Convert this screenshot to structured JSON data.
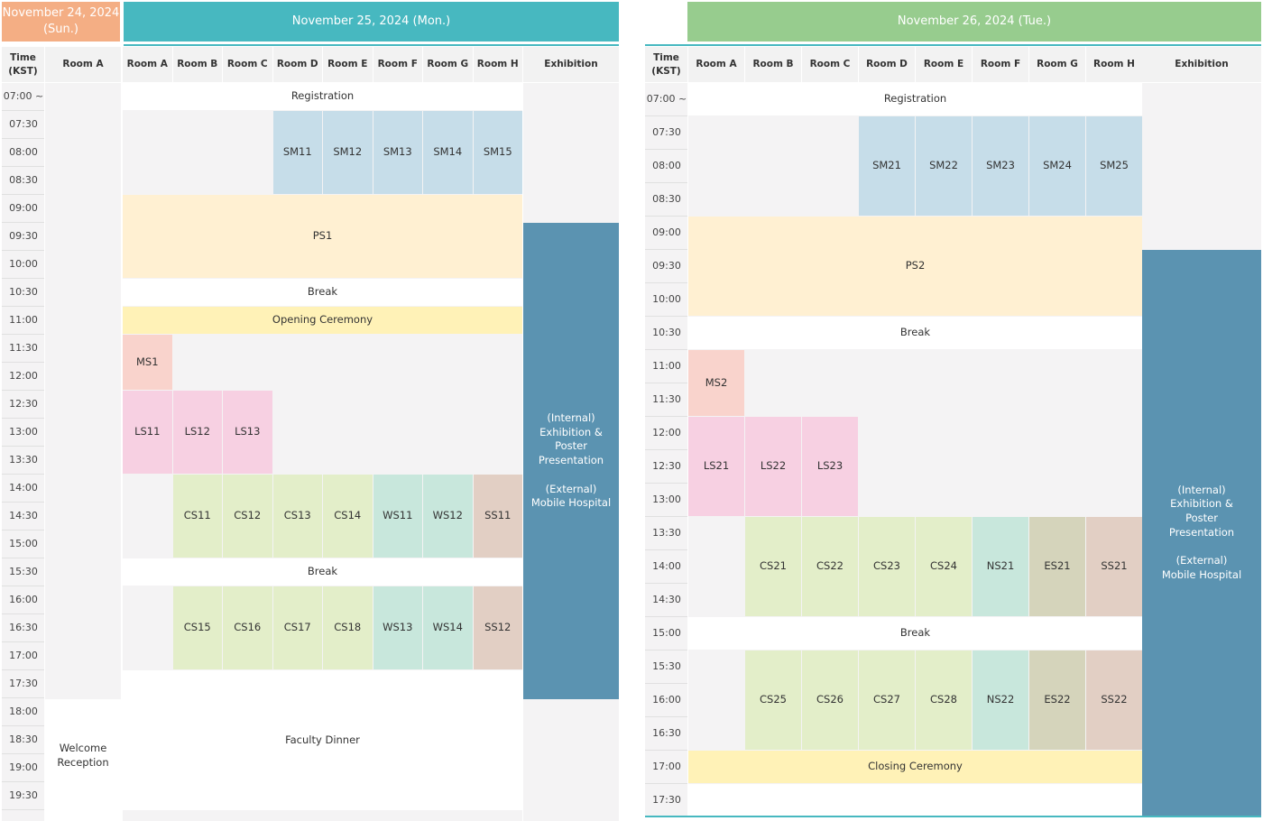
{
  "day1": {
    "sun_label": "November 24, 2024 (Sun.)",
    "mon_label": "November 25, 2024 (Mon.)",
    "time_header": "Time (KST)",
    "sun_room": "Room A",
    "rooms": [
      "Room A",
      "Room B",
      "Room C",
      "Room D",
      "Room E",
      "Room F",
      "Room G",
      "Room H"
    ],
    "exhibition": "Exhibition",
    "times": [
      "07:00 ~",
      "07:30",
      "08:00",
      "08:30",
      "09:00",
      "09:30",
      "10:00",
      "10:30",
      "11:00",
      "11:30",
      "12:00",
      "12:30",
      "13:00",
      "13:30",
      "14:00",
      "14:30",
      "15:00",
      "15:30",
      "16:00",
      "16:30",
      "17:00",
      "17:30",
      "18:00",
      "18:30",
      "19:00",
      "19:30"
    ],
    "registration": "Registration",
    "sm": [
      "SM11",
      "SM12",
      "SM13",
      "SM14",
      "SM15"
    ],
    "ps": "PS1",
    "break1": "Break",
    "opening": "Opening Ceremony",
    "ms": "MS1",
    "ls": [
      "LS11",
      "LS12",
      "LS13"
    ],
    "cs_a": [
      "CS11",
      "CS12",
      "CS13",
      "CS14"
    ],
    "ws_a": [
      "WS11",
      "WS12"
    ],
    "ss_a": "SS11",
    "break2": "Break",
    "cs_b": [
      "CS15",
      "CS16",
      "CS17",
      "CS18"
    ],
    "ws_b": [
      "WS13",
      "WS14"
    ],
    "ss_b": "SS12",
    "faculty_dinner": "Faculty Dinner",
    "welcome": "Welcome Reception",
    "exh_internal": "(Internal) Exhibition & Poster Presentation",
    "exh_external": "(External) Mobile Hospital"
  },
  "day2": {
    "tue_label": "November 26, 2024 (Tue.)",
    "time_header": "Time (KST)",
    "rooms": [
      "Room A",
      "Room B",
      "Room C",
      "Room D",
      "Room E",
      "Room F",
      "Room G",
      "Room H"
    ],
    "exhibition": "Exhibition",
    "times": [
      "07:00 ~",
      "07:30",
      "08:00",
      "08:30",
      "09:00",
      "09:30",
      "10:00",
      "10:30",
      "11:00",
      "11:30",
      "12:00",
      "12:30",
      "13:00",
      "13:30",
      "14:00",
      "14:30",
      "15:00",
      "15:30",
      "16:00",
      "16:30",
      "17:00",
      "17:30"
    ],
    "registration": "Registration",
    "sm": [
      "SM21",
      "SM22",
      "SM23",
      "SM24",
      "SM25"
    ],
    "ps": "PS2",
    "break1": "Break",
    "ms": "MS2",
    "ls": [
      "LS21",
      "LS22",
      "LS23"
    ],
    "cs_a": [
      "CS21",
      "CS22",
      "CS23",
      "CS24"
    ],
    "ns_a": "NS21",
    "es_a": "ES21",
    "ss_a": "SS21",
    "break2": "Break",
    "cs_b": [
      "CS25",
      "CS26",
      "CS27",
      "CS28"
    ],
    "ns_b": "NS22",
    "es_b": "ES22",
    "ss_b": "SS22",
    "closing": "Closing Ceremony",
    "exh_internal": "(Internal) Exhibition & Poster Presentation",
    "exh_external": "(External) Mobile Hospital"
  },
  "colors": {
    "sun_header": "#f4ae84",
    "mon_header": "#47b8c0",
    "tue_header": "#97cc8e",
    "exhibition": "#5b93b1"
  }
}
